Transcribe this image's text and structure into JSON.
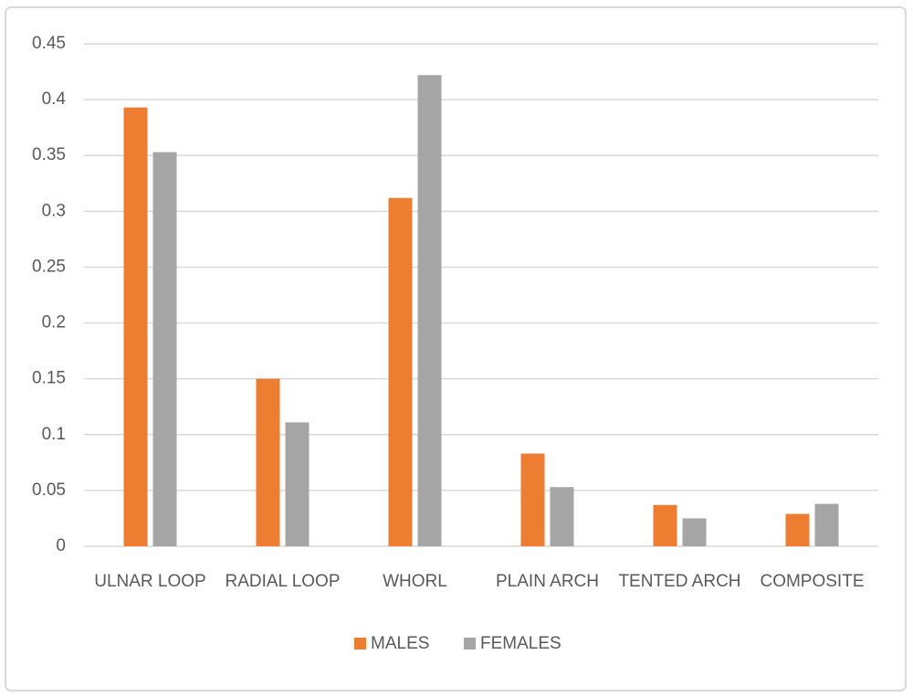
{
  "chart_data": {
    "type": "bar",
    "categories": [
      "ULNAR LOOP",
      "RADIAL LOOP",
      "WHORL",
      "PLAIN ARCH",
      "TENTED ARCH",
      "COMPOSITE"
    ],
    "series": [
      {
        "name": "MALES",
        "color": "#ed7d31",
        "values": [
          0.393,
          0.15,
          0.312,
          0.083,
          0.037,
          0.029
        ]
      },
      {
        "name": "FEMALES",
        "color": "#a5a5a5",
        "values": [
          0.353,
          0.111,
          0.422,
          0.053,
          0.025,
          0.038
        ]
      }
    ],
    "ylim": [
      0,
      0.45
    ],
    "yticks": [
      0,
      0.05,
      0.1,
      0.15,
      0.2,
      0.25,
      0.3,
      0.35,
      0.4,
      0.45
    ],
    "grid": true,
    "legend": "bottom"
  }
}
